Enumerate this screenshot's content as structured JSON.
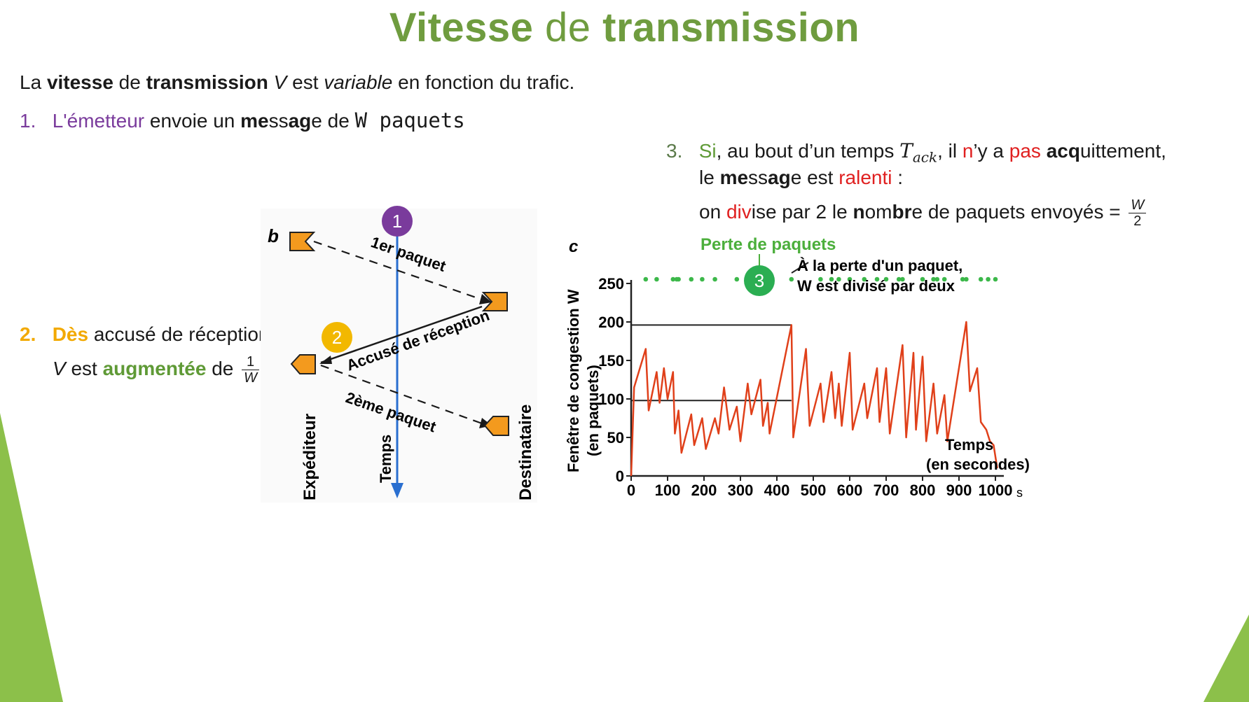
{
  "title": {
    "part1": "Vitesse",
    "part2": " de ",
    "part3": "transmission"
  },
  "intro": {
    "t1": "La ",
    "t2": "vitesse",
    "t3": " de ",
    "t4": "transmission",
    "t5": " ",
    "t6": "V",
    "t7": " est ",
    "t8": "variable",
    "t9": " en fonction du trafic."
  },
  "step1": {
    "num": "1.",
    "a": "L'émetteur",
    "b": " envoie un ",
    "c": "me",
    "d": "ss",
    "e": "a",
    "f": "g",
    "g": "e de ",
    "code": "W paquets"
  },
  "step2": {
    "num": "2.",
    "a": "Dès",
    "b": " accusé de réception,",
    "c": "V",
    "d": " est ",
    "e": "augmentée",
    "f": " de ",
    "frac_num": "1",
    "frac_den": "W"
  },
  "step3": {
    "num": "3.",
    "a": "Si",
    "b": ", au bout d’un temps ",
    "c": "T",
    "c_sub": "ack",
    "d": ", il ",
    "e": "n",
    "f": "’y a ",
    "g": "pas",
    "h": " ",
    "i": "acq",
    "j": "uittement,",
    "line2a": "le ",
    "line2b": "me",
    "line2c": "ss",
    "line2d": "a",
    "line2e": "g",
    "line2f": "e est ",
    "line2g": "ralenti",
    "line2h": " :",
    "line3a": "on ",
    "line3b": "div",
    "line3c": "ise par 2 le ",
    "line3d": "n",
    "line3e": "om",
    "line3f": "br",
    "line3g": "e de paquets envoyés = ",
    "frac_num": "W",
    "frac_den": "2"
  },
  "badges": {
    "one": "1",
    "two": "2",
    "three": "3"
  },
  "colors": {
    "title_green": "#6f9c3f",
    "purple": "#7a3b9c",
    "orange": "#f2a900",
    "green": "#5f9a36",
    "red": "#e02020",
    "flag": "#f39a1e",
    "arrow_blue": "#2a6fd0",
    "curve": "#e0401a",
    "dots": "#3cb84a"
  },
  "diagram": {
    "panel_letter": "b",
    "first_packet": "1er paquet",
    "ack": "Accusé de réception",
    "second_packet": "2ème paquet",
    "sender": "Expéditeur",
    "time": "Temps",
    "receiver": "Destinataire"
  },
  "chart_data": {
    "type": "line",
    "panel_letter": "c",
    "ylabel_line1": "Fenêtre de congestion W",
    "ylabel_line2": "(en paquets)",
    "xlabel_line1": "Temps",
    "xlabel_line2": "(en secondes)",
    "x_unit": "s",
    "xlim": [
      0,
      1000
    ],
    "ylim": [
      0,
      250
    ],
    "xticks": [
      "0",
      "100",
      "200",
      "300",
      "400",
      "500",
      "600",
      "700",
      "800",
      "900",
      "1000"
    ],
    "yticks": [
      "0",
      "50",
      "100",
      "150",
      "200",
      "250"
    ],
    "loss_label": "Perte de paquets",
    "annotation_line1": "À la perte d'un paquet,",
    "annotation_line2": "W est divisé par deux",
    "reference_levels": [
      196,
      98
    ],
    "loss_times": [
      40,
      70,
      115,
      125,
      130,
      165,
      195,
      230,
      290,
      355,
      375,
      440,
      520,
      550,
      570,
      600,
      640,
      675,
      700,
      735,
      745,
      800,
      830,
      840,
      860,
      910,
      920,
      960,
      980,
      1000
    ],
    "series": [
      {
        "x": [
          0,
          8,
          40,
          48,
          70,
          78,
          90,
          100,
          115,
          120,
          130,
          138,
          165,
          173,
          195,
          205,
          230,
          240,
          255,
          270,
          290,
          300,
          320,
          330,
          355,
          362,
          375,
          380,
          440,
          445,
          480,
          490,
          520,
          528,
          550,
          560,
          570,
          578,
          600,
          608,
          640,
          648,
          675,
          682,
          700,
          710,
          745,
          755,
          775,
          782,
          800,
          810,
          830,
          840,
          860,
          868,
          920,
          930,
          950,
          960,
          975,
          985,
          995,
          1005
        ],
        "y": [
          0,
          115,
          165,
          85,
          135,
          95,
          140,
          100,
          135,
          55,
          85,
          30,
          80,
          40,
          75,
          35,
          75,
          55,
          115,
          60,
          90,
          45,
          120,
          80,
          125,
          65,
          95,
          55,
          196,
          50,
          165,
          65,
          120,
          70,
          135,
          75,
          120,
          65,
          160,
          60,
          120,
          75,
          140,
          70,
          140,
          55,
          170,
          50,
          160,
          60,
          155,
          45,
          120,
          55,
          105,
          45,
          200,
          110,
          140,
          70,
          60,
          45,
          40,
          10
        ]
      }
    ]
  }
}
